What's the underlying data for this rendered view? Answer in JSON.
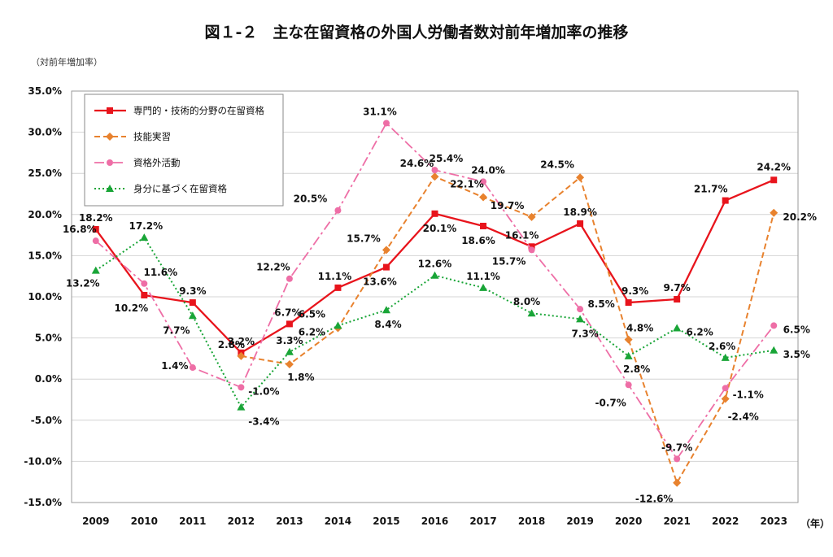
{
  "chart_data": {
    "type": "line",
    "title": "図１-２　主な在留資格の外国人労働者数対前年増加率の推移",
    "ylabel": "（対前年増加率）",
    "xlabel": "（年）",
    "ylim": [
      -15,
      35
    ],
    "ytick_step": 5,
    "yticks": [
      "35.0%",
      "30.0%",
      "25.0%",
      "20.0%",
      "15.0%",
      "10.0%",
      "5.0%",
      "0.0%",
      "-5.0%",
      "-10.0%",
      "-15.0%"
    ],
    "grid": true,
    "legend_position": "top-left",
    "categories": [
      "2009",
      "2010",
      "2011",
      "2012",
      "2013",
      "2014",
      "2015",
      "2016",
      "2017",
      "2018",
      "2019",
      "2020",
      "2021",
      "2022",
      "2023"
    ],
    "series": [
      {
        "name": "専門的・技術的分野の在留資格",
        "color": "#e8141c",
        "dash": "solid",
        "marker": "square",
        "values": [
          18.2,
          10.2,
          9.3,
          3.2,
          6.7,
          11.1,
          13.6,
          20.1,
          18.6,
          16.1,
          18.9,
          9.3,
          9.7,
          21.7,
          24.2
        ],
        "labels": [
          "18.2%",
          "10.2%",
          "9.3%",
          "3.2%",
          "6.7%",
          "11.1%",
          "13.6%",
          "20.1%",
          "18.6%",
          "16.1%",
          "18.9%",
          "9.3%",
          "9.7%",
          "21.7%",
          "24.2%"
        ]
      },
      {
        "name": "技能実習",
        "color": "#e8822e",
        "dash": "dash",
        "marker": "diamond",
        "values": [
          null,
          null,
          null,
          2.8,
          1.8,
          6.2,
          15.7,
          24.6,
          22.1,
          19.7,
          24.5,
          4.8,
          -12.6,
          -2.4,
          20.2
        ],
        "labels": [
          "",
          "",
          "",
          "2.8%",
          "1.8%",
          "6.2%",
          "15.7%",
          "24.6%",
          "22.1%",
          "19.7%",
          "24.5%",
          "4.8%",
          "-12.6%",
          "-2.4%",
          "20.2%"
        ]
      },
      {
        "name": "資格外活動",
        "color": "#ee6ea6",
        "dash": "dashdot",
        "marker": "circle",
        "values": [
          16.8,
          11.6,
          1.4,
          -1.0,
          12.2,
          20.5,
          31.1,
          25.4,
          24.0,
          15.7,
          8.5,
          -0.7,
          -9.7,
          -1.1,
          6.5
        ],
        "labels": [
          "16.8%",
          "11.6%",
          "1.4%",
          "-1.0%",
          "12.2%",
          "20.5%",
          "31.1%",
          "25.4%",
          "24.0%",
          "15.7%",
          "8.5%",
          "-0.7%",
          "-9.7%",
          "-1.1%",
          "6.5%"
        ]
      },
      {
        "name": "身分に基づく在留資格",
        "color": "#19a537",
        "dash": "dot",
        "marker": "triangle",
        "values": [
          13.2,
          17.2,
          7.7,
          -3.4,
          3.3,
          6.5,
          8.4,
          12.6,
          11.1,
          8.0,
          7.3,
          2.8,
          6.2,
          2.6,
          3.5
        ],
        "labels": [
          "13.2%",
          "17.2%",
          "7.7%",
          "-3.4%",
          "3.3%",
          "6.5%",
          "8.4%",
          "12.6%",
          "11.1%",
          "8.0%",
          "7.3%",
          "2.8%",
          "6.2%",
          "2.6%",
          "3.5%"
        ]
      }
    ]
  }
}
